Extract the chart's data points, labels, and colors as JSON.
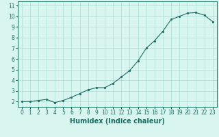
{
  "x": [
    0,
    1,
    2,
    3,
    4,
    5,
    6,
    7,
    8,
    9,
    10,
    11,
    12,
    13,
    14,
    15,
    16,
    17,
    18,
    19,
    20,
    21,
    22,
    23
  ],
  "y": [
    2.0,
    2.0,
    2.1,
    2.2,
    1.9,
    2.1,
    2.4,
    2.75,
    3.1,
    3.3,
    3.3,
    3.7,
    4.3,
    4.9,
    5.8,
    7.0,
    7.7,
    8.6,
    9.7,
    10.0,
    10.3,
    10.35,
    10.1,
    9.5
  ],
  "xlabel": "Humidex (Indice chaleur)",
  "xlim": [
    -0.5,
    23.5
  ],
  "ylim": [
    1.5,
    11.4
  ],
  "yticks": [
    2,
    3,
    4,
    5,
    6,
    7,
    8,
    9,
    10,
    11
  ],
  "xticks": [
    0,
    1,
    2,
    3,
    4,
    5,
    6,
    7,
    8,
    9,
    10,
    11,
    12,
    13,
    14,
    15,
    16,
    17,
    18,
    19,
    20,
    21,
    22,
    23
  ],
  "line_color": "#1a6e62",
  "marker_color": "#1a6e62",
  "bg_color": "#d8f5f0",
  "grid_color": "#a8ddd5",
  "label_fontsize": 7,
  "tick_fontsize": 5.5
}
